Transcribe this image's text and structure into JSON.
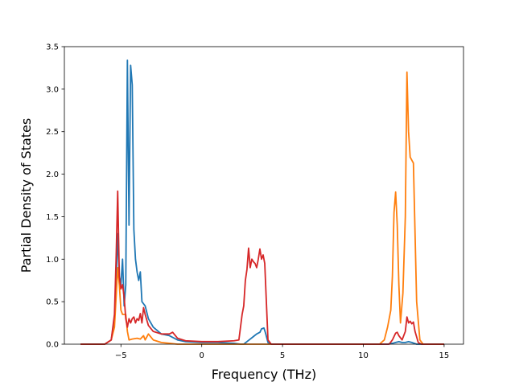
{
  "chart_data": {
    "type": "line",
    "title": "",
    "xlabel": "Frequency (THz)",
    "ylabel": "Partial Density of States",
    "xlim": [
      -8.5,
      16.2
    ],
    "ylim": [
      0,
      3.5
    ],
    "xticks": [
      -5,
      0,
      5,
      10,
      15
    ],
    "xtick_labels": [
      "−5",
      "0",
      "5",
      "10",
      "15"
    ],
    "yticks": [
      0,
      0.5,
      1,
      1.5,
      2,
      2.5,
      3,
      3.5
    ],
    "ytick_labels": [
      "0.0",
      "0.5",
      "1.0",
      "1.5",
      "2.0",
      "2.5",
      "3.0",
      "3.5"
    ],
    "grid": false,
    "series": [
      {
        "color": "#1f77b4",
        "points": [
          [
            -7.5,
            0
          ],
          [
            -6.0,
            0
          ],
          [
            -5.6,
            0.05
          ],
          [
            -5.4,
            0.3
          ],
          [
            -5.3,
            0.7
          ],
          [
            -5.2,
            1.3
          ],
          [
            -5.1,
            0.8
          ],
          [
            -5.0,
            0.7
          ],
          [
            -4.9,
            1.0
          ],
          [
            -4.8,
            0.45
          ],
          [
            -4.7,
            0.7
          ],
          [
            -4.6,
            3.34
          ],
          [
            -4.5,
            1.4
          ],
          [
            -4.4,
            3.28
          ],
          [
            -4.3,
            3.05
          ],
          [
            -4.2,
            1.35
          ],
          [
            -4.1,
            1.0
          ],
          [
            -4.0,
            0.85
          ],
          [
            -3.9,
            0.75
          ],
          [
            -3.8,
            0.85
          ],
          [
            -3.7,
            0.5
          ],
          [
            -3.5,
            0.45
          ],
          [
            -3.3,
            0.3
          ],
          [
            -3.0,
            0.2
          ],
          [
            -2.5,
            0.12
          ],
          [
            -2.0,
            0.1
          ],
          [
            -1.5,
            0.05
          ],
          [
            -1.0,
            0.03
          ],
          [
            0,
            0.02
          ],
          [
            1.0,
            0.02
          ],
          [
            2.0,
            0.01
          ],
          [
            2.4,
            0
          ],
          [
            2.6,
            0
          ],
          [
            2.8,
            0.03
          ],
          [
            3.0,
            0.06
          ],
          [
            3.2,
            0.09
          ],
          [
            3.4,
            0.12
          ],
          [
            3.6,
            0.14
          ],
          [
            3.7,
            0.18
          ],
          [
            3.85,
            0.19
          ],
          [
            3.95,
            0.13
          ],
          [
            4.1,
            0.02
          ],
          [
            4.3,
            0
          ],
          [
            11.0,
            0
          ],
          [
            11.5,
            0
          ],
          [
            11.8,
            0.01
          ],
          [
            12.0,
            0.02
          ],
          [
            12.2,
            0.03
          ],
          [
            12.4,
            0.02
          ],
          [
            12.6,
            0.02
          ],
          [
            12.8,
            0.03
          ],
          [
            13.0,
            0.02
          ],
          [
            13.3,
            0
          ],
          [
            15.0,
            0
          ]
        ]
      },
      {
        "color": "#ff7f0e",
        "points": [
          [
            -7.5,
            0
          ],
          [
            -6.0,
            0
          ],
          [
            -5.6,
            0.05
          ],
          [
            -5.4,
            0.2
          ],
          [
            -5.3,
            0.55
          ],
          [
            -5.2,
            0.9
          ],
          [
            -5.1,
            0.7
          ],
          [
            -5.0,
            0.4
          ],
          [
            -4.9,
            0.35
          ],
          [
            -4.7,
            0.35
          ],
          [
            -4.6,
            0.15
          ],
          [
            -4.5,
            0.05
          ],
          [
            -4.3,
            0.06
          ],
          [
            -4.0,
            0.07
          ],
          [
            -3.8,
            0.06
          ],
          [
            -3.6,
            0.1
          ],
          [
            -3.5,
            0.05
          ],
          [
            -3.3,
            0.12
          ],
          [
            -3.0,
            0.05
          ],
          [
            -2.5,
            0.02
          ],
          [
            -2.0,
            0.01
          ],
          [
            -1.5,
            0
          ],
          [
            0,
            0
          ],
          [
            2.0,
            0
          ],
          [
            11.0,
            0
          ],
          [
            11.3,
            0.05
          ],
          [
            11.5,
            0.2
          ],
          [
            11.7,
            0.4
          ],
          [
            11.8,
            0.8
          ],
          [
            11.9,
            1.55
          ],
          [
            12.0,
            1.79
          ],
          [
            12.1,
            1.4
          ],
          [
            12.2,
            0.7
          ],
          [
            12.3,
            0.25
          ],
          [
            12.45,
            0.6
          ],
          [
            12.6,
            1.5
          ],
          [
            12.7,
            3.2
          ],
          [
            12.8,
            2.5
          ],
          [
            12.9,
            2.2
          ],
          [
            13.1,
            2.13
          ],
          [
            13.3,
            0.5
          ],
          [
            13.5,
            0.05
          ],
          [
            13.7,
            0
          ],
          [
            15.0,
            0
          ]
        ]
      },
      {
        "color": "#d62728",
        "points": [
          [
            -7.5,
            0
          ],
          [
            -6.0,
            0
          ],
          [
            -5.6,
            0.05
          ],
          [
            -5.4,
            0.35
          ],
          [
            -5.3,
            1.0
          ],
          [
            -5.2,
            1.8
          ],
          [
            -5.1,
            0.8
          ],
          [
            -5.0,
            0.65
          ],
          [
            -4.9,
            0.7
          ],
          [
            -4.8,
            0.55
          ],
          [
            -4.7,
            0.3
          ],
          [
            -4.6,
            0.2
          ],
          [
            -4.5,
            0.3
          ],
          [
            -4.4,
            0.25
          ],
          [
            -4.3,
            0.3
          ],
          [
            -4.2,
            0.32
          ],
          [
            -4.1,
            0.25
          ],
          [
            -4.0,
            0.3
          ],
          [
            -3.9,
            0.28
          ],
          [
            -3.8,
            0.36
          ],
          [
            -3.7,
            0.25
          ],
          [
            -3.6,
            0.43
          ],
          [
            -3.5,
            0.35
          ],
          [
            -3.3,
            0.22
          ],
          [
            -3.0,
            0.15
          ],
          [
            -2.5,
            0.12
          ],
          [
            -2.0,
            0.12
          ],
          [
            -1.8,
            0.14
          ],
          [
            -1.5,
            0.07
          ],
          [
            -1.0,
            0.04
          ],
          [
            0,
            0.03
          ],
          [
            1.0,
            0.03
          ],
          [
            2.0,
            0.04
          ],
          [
            2.3,
            0.05
          ],
          [
            2.5,
            0.35
          ],
          [
            2.6,
            0.45
          ],
          [
            2.7,
            0.75
          ],
          [
            2.8,
            0.88
          ],
          [
            2.9,
            1.13
          ],
          [
            3.0,
            0.9
          ],
          [
            3.1,
            1.0
          ],
          [
            3.2,
            0.97
          ],
          [
            3.3,
            0.95
          ],
          [
            3.4,
            0.9
          ],
          [
            3.5,
            1.0
          ],
          [
            3.6,
            1.12
          ],
          [
            3.7,
            1.0
          ],
          [
            3.8,
            1.05
          ],
          [
            3.9,
            0.95
          ],
          [
            4.0,
            0.5
          ],
          [
            4.1,
            0.05
          ],
          [
            4.3,
            0
          ],
          [
            11.0,
            0
          ],
          [
            11.6,
            0
          ],
          [
            11.8,
            0.05
          ],
          [
            12.0,
            0.13
          ],
          [
            12.1,
            0.14
          ],
          [
            12.2,
            0.1
          ],
          [
            12.4,
            0.05
          ],
          [
            12.6,
            0.15
          ],
          [
            12.7,
            0.32
          ],
          [
            12.8,
            0.25
          ],
          [
            12.9,
            0.27
          ],
          [
            13.0,
            0.24
          ],
          [
            13.1,
            0.26
          ],
          [
            13.2,
            0.15
          ],
          [
            13.4,
            0.02
          ],
          [
            13.6,
            0
          ],
          [
            15.0,
            0
          ]
        ]
      }
    ]
  }
}
